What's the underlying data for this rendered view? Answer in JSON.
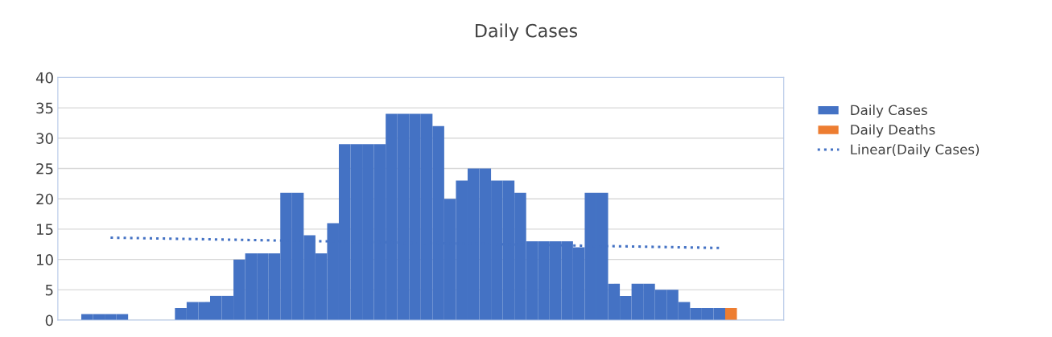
{
  "chart_data": {
    "type": "bar",
    "title": "Daily Cases",
    "categories": [
      null,
      null,
      null,
      null,
      null,
      null,
      null,
      null,
      null,
      null,
      null,
      null,
      null,
      null,
      null,
      null,
      null,
      null,
      null,
      null,
      null,
      null,
      null,
      null,
      null,
      null,
      null,
      null,
      null,
      null,
      null,
      null,
      null,
      null,
      null,
      null,
      null,
      null,
      null,
      null,
      null,
      null,
      null,
      null,
      null,
      null,
      null,
      null,
      null,
      null,
      null,
      null,
      null,
      null,
      null,
      null,
      null,
      null,
      null,
      null,
      null,
      null
    ],
    "series": [
      {
        "name": "Daily Cases",
        "color": "#4472c4",
        "values": [
          null,
          null,
          1,
          1,
          1,
          1,
          0,
          0,
          0,
          0,
          2,
          3,
          3,
          4,
          4,
          10,
          11,
          11,
          11,
          21,
          21,
          14,
          11,
          16,
          29,
          29,
          29,
          29,
          34,
          34,
          34,
          34,
          32,
          20,
          23,
          25,
          25,
          23,
          23,
          21,
          13,
          13,
          13,
          13,
          12,
          21,
          21,
          6,
          4,
          6,
          6,
          5,
          5,
          3,
          2,
          2,
          2,
          null,
          null,
          null,
          null,
          null
        ]
      },
      {
        "name": "Daily Deaths",
        "color": "#ed7d31",
        "values": [
          null,
          null,
          null,
          null,
          null,
          null,
          null,
          null,
          null,
          null,
          null,
          null,
          null,
          null,
          null,
          null,
          null,
          null,
          null,
          null,
          null,
          null,
          null,
          null,
          null,
          null,
          null,
          null,
          null,
          null,
          null,
          null,
          null,
          null,
          null,
          null,
          null,
          null,
          null,
          null,
          null,
          null,
          null,
          null,
          null,
          null,
          null,
          null,
          null,
          null,
          null,
          null,
          null,
          null,
          null,
          null,
          null,
          2,
          null,
          null,
          null,
          null
        ]
      },
      {
        "name": "Linear(Daily Cases)",
        "type": "line",
        "color": "#4472c4",
        "line_style": "dotted",
        "values": [
          null,
          null,
          null,
          null,
          13.6,
          null,
          null,
          null,
          null,
          null,
          null,
          null,
          null,
          null,
          null,
          null,
          null,
          null,
          null,
          null,
          null,
          null,
          null,
          null,
          null,
          null,
          null,
          null,
          null,
          null,
          null,
          null,
          null,
          null,
          null,
          null,
          null,
          null,
          null,
          null,
          null,
          null,
          null,
          null,
          null,
          null,
          null,
          null,
          null,
          null,
          null,
          null,
          null,
          null,
          null,
          null,
          11.9,
          null,
          null,
          null,
          null,
          null
        ]
      }
    ],
    "ylim": [
      0,
      40
    ],
    "yticks": [
      0,
      5,
      10,
      15,
      20,
      25,
      30,
      35,
      40
    ],
    "grid": "y",
    "legend": "right",
    "tick_labels": "y"
  }
}
